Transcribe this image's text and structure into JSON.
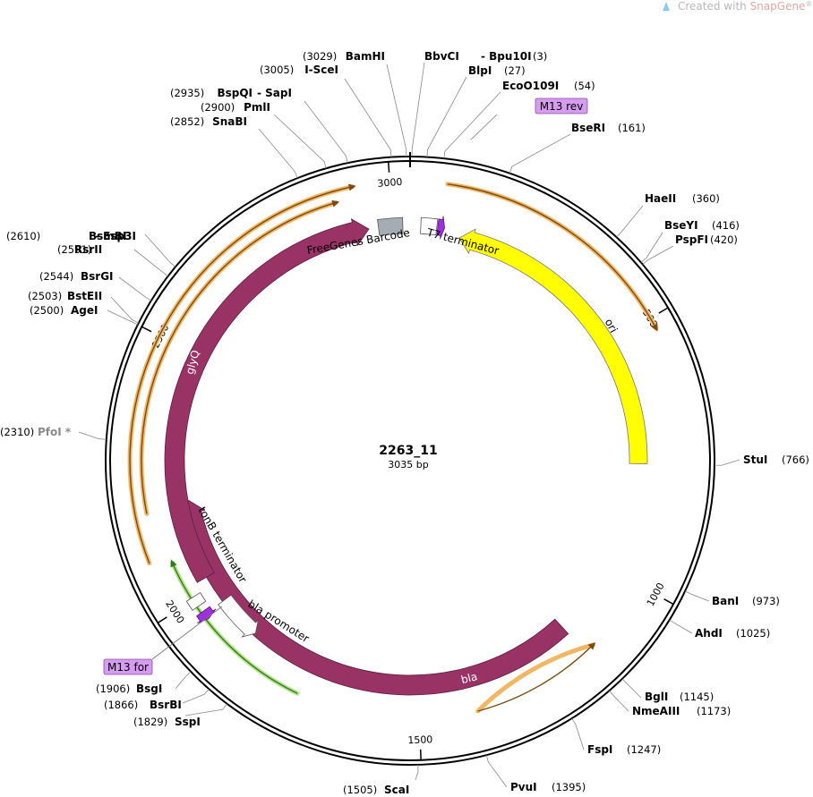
{
  "watermark": {
    "prefix": "Created with ",
    "brand": "SnapGene",
    "reg": "®"
  },
  "plasmid": {
    "name": "2263_11",
    "length_label": "3035 bp",
    "length": 3035
  },
  "ticks": [
    {
      "bp": 3000,
      "label": "3000"
    },
    {
      "bp": 500,
      "label": "500"
    },
    {
      "bp": 1000,
      "label": "1000"
    },
    {
      "bp": 1500,
      "label": "1500"
    },
    {
      "bp": 2000,
      "label": "2000"
    },
    {
      "bp": 2500,
      "label": "2500"
    }
  ],
  "sites": [
    {
      "name": "BamHI",
      "pos": "(3029)",
      "bp": 3029
    },
    {
      "name": "I-SceI",
      "pos": "(3005)",
      "bp": 3005
    },
    {
      "name": "BspQI",
      "name2": "SapI",
      "pos": "(2935)",
      "bp": 2935
    },
    {
      "name": "PmlI",
      "pos": "(2900)",
      "bp": 2900
    },
    {
      "name": "SnaBI",
      "pos": "(2852)",
      "bp": 2852
    },
    {
      "name": "BbvCI",
      "name2": "Bpu10I",
      "pos": "(3)",
      "bp": 3
    },
    {
      "name": "BlpI",
      "pos": "(27)",
      "bp": 27
    },
    {
      "name": "EcoO109I",
      "pos": "(54)",
      "bp": 54
    },
    {
      "name": "BseRI",
      "pos": "(161)",
      "bp": 161
    },
    {
      "name": "HaeII",
      "pos": "(360)",
      "bp": 360
    },
    {
      "name": "BseYI",
      "pos": "(416)",
      "bp": 416
    },
    {
      "name": "PspFI",
      "pos": "(420)",
      "bp": 420
    },
    {
      "name": "StuI",
      "pos": "(766)",
      "bp": 766
    },
    {
      "name": "BanI",
      "pos": "(973)",
      "bp": 973
    },
    {
      "name": "AhdI",
      "pos": "(1025)",
      "bp": 1025
    },
    {
      "name": "BglI",
      "pos": "(1145)",
      "bp": 1145
    },
    {
      "name": "NmeAIII",
      "pos": "(1173)",
      "bp": 1173
    },
    {
      "name": "FspI",
      "pos": "(1247)",
      "bp": 1247
    },
    {
      "name": "PvuI",
      "pos": "(1395)",
      "bp": 1395
    },
    {
      "name": "ScaI",
      "pos": "(1505)",
      "bp": 1505
    },
    {
      "name": "SspI",
      "pos": "(1829)",
      "bp": 1829
    },
    {
      "name": "BsrBI",
      "pos": "(1866)",
      "bp": 1866
    },
    {
      "name": "BsgI",
      "pos": "(1906)",
      "bp": 1906
    },
    {
      "name": "PfoI *",
      "pos": "(2310)",
      "bp": 2310,
      "grey": true
    },
    {
      "name": "AgeI",
      "pos": "(2500)",
      "bp": 2500
    },
    {
      "name": "BstEII",
      "pos": "(2503)",
      "bp": 2503
    },
    {
      "name": "BsrGI",
      "pos": "(2544)",
      "bp": 2544
    },
    {
      "name": "RsrII",
      "pos": "(2591)",
      "bp": 2591
    },
    {
      "name": "BsmBI",
      "name2": "Esp3I",
      "pos": "(2610)",
      "bp": 2610
    }
  ],
  "features": {
    "ori": "ori",
    "bla": "bla",
    "glyQ": "glyQ",
    "freegenes_barcode": "FreeGenes Barcode",
    "t7_terminator": "T7 terminator",
    "tonb_terminator": "tonB terminator",
    "bla_promoter": "bla promoter"
  },
  "primers": {
    "m13_rev": "M13 rev",
    "m13_for": "M13 for"
  },
  "colors": {
    "ori": "#ffff00",
    "bla": "#993366",
    "glyQ": "#993366",
    "barcode": "#a6acb3",
    "primer": "#d59cf0",
    "orf_orange": "#f2b765",
    "orf_green": "#b6e28a"
  }
}
